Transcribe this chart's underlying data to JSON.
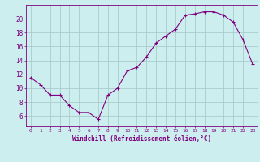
{
  "hours": [
    0,
    1,
    2,
    3,
    4,
    5,
    6,
    7,
    8,
    9,
    10,
    11,
    12,
    13,
    14,
    15,
    16,
    17,
    18,
    19,
    20,
    21,
    22,
    23
  ],
  "windchill": [
    11.5,
    10.5,
    9.0,
    9.0,
    7.5,
    6.5,
    6.5,
    5.5,
    9.0,
    10.0,
    12.5,
    13.0,
    14.5,
    16.5,
    17.5,
    18.5,
    20.5,
    20.7,
    21.0,
    21.0,
    20.5,
    19.5,
    17.0,
    13.5
  ],
  "line_color": "#800080",
  "marker": "+",
  "bg_color": "#cceeee",
  "grid_color": "#aacccc",
  "xlabel": "Windchill (Refroidissement éolien,°C)",
  "xlabel_color": "#800080",
  "tick_color": "#800080",
  "ylim": [
    4.5,
    22
  ],
  "yticks": [
    6,
    8,
    10,
    12,
    14,
    16,
    18,
    20
  ],
  "title": ""
}
